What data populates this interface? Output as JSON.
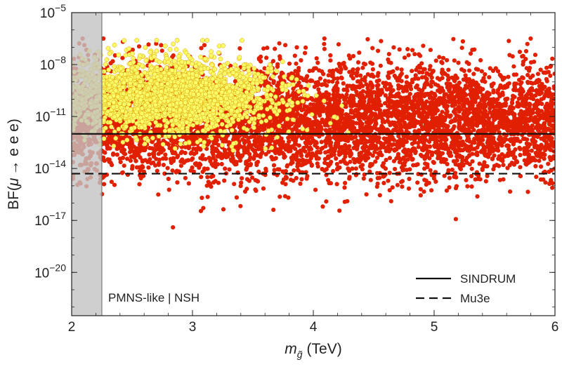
{
  "chart_data": {
    "type": "scatter",
    "title": "",
    "xlabel": "m_g̃ (TeV)",
    "xlabel_parts": {
      "symbol": "m",
      "subscript": "g̃",
      "units": "(TeV)"
    },
    "ylabel": "BF(μ → e e e)",
    "ylabel_parts": {
      "prefix": "BF(",
      "mu": "μ",
      "arrow": "→",
      "rest": " e e e)"
    },
    "xlim": [
      2,
      6
    ],
    "ylim_log10": [
      -22.5,
      -5
    ],
    "yscale": "log",
    "x_ticks": [
      {
        "value": 2,
        "label": "2"
      },
      {
        "value": 3,
        "label": "3"
      },
      {
        "value": 4,
        "label": "4"
      },
      {
        "value": 5,
        "label": "5"
      },
      {
        "value": 6,
        "label": "6"
      }
    ],
    "y_ticks": [
      {
        "exp": -5,
        "base": "10",
        "sup": "−5"
      },
      {
        "exp": -8,
        "base": "10",
        "sup": "−8"
      },
      {
        "exp": -11,
        "base": "10",
        "sup": "−11"
      },
      {
        "exp": -14,
        "base": "10",
        "sup": "−14"
      },
      {
        "exp": -17,
        "base": "10",
        "sup": "−17"
      },
      {
        "exp": -20,
        "base": "10",
        "sup": "−20"
      }
    ],
    "excluded_region": {
      "x_min": 2,
      "x_max": 2.25,
      "color": "#c3c3c3"
    },
    "reference_lines": [
      {
        "name": "SINDRUM",
        "log10_value": -12,
        "style": "solid"
      },
      {
        "name": "Mu3e",
        "log10_value": -14.3,
        "style": "dashed"
      }
    ],
    "series": [
      {
        "name": "red points",
        "color": "#e02000",
        "count": 6000,
        "x_range": [
          2.0,
          6.0
        ],
        "log10_center": -11.2,
        "log10_spread": 1.6,
        "log10_range": [
          -17.5,
          -6.5
        ]
      },
      {
        "name": "yellow points",
        "color": "#fbfb6a",
        "edge_color": "#e0a000",
        "count": 2200,
        "x_range": [
          2.0,
          4.6
        ],
        "x_peak": 2.8,
        "log10_center": -9.8,
        "log10_spread": 1.1,
        "log10_range": [
          -14.0,
          -6.6
        ]
      }
    ],
    "annotation": "PMNS-like | NSH",
    "legend_position": "bottom-right",
    "legend": [
      {
        "label": "SINDRUM",
        "style": "solid"
      },
      {
        "label": "Mu3e",
        "style": "dashed"
      }
    ]
  }
}
